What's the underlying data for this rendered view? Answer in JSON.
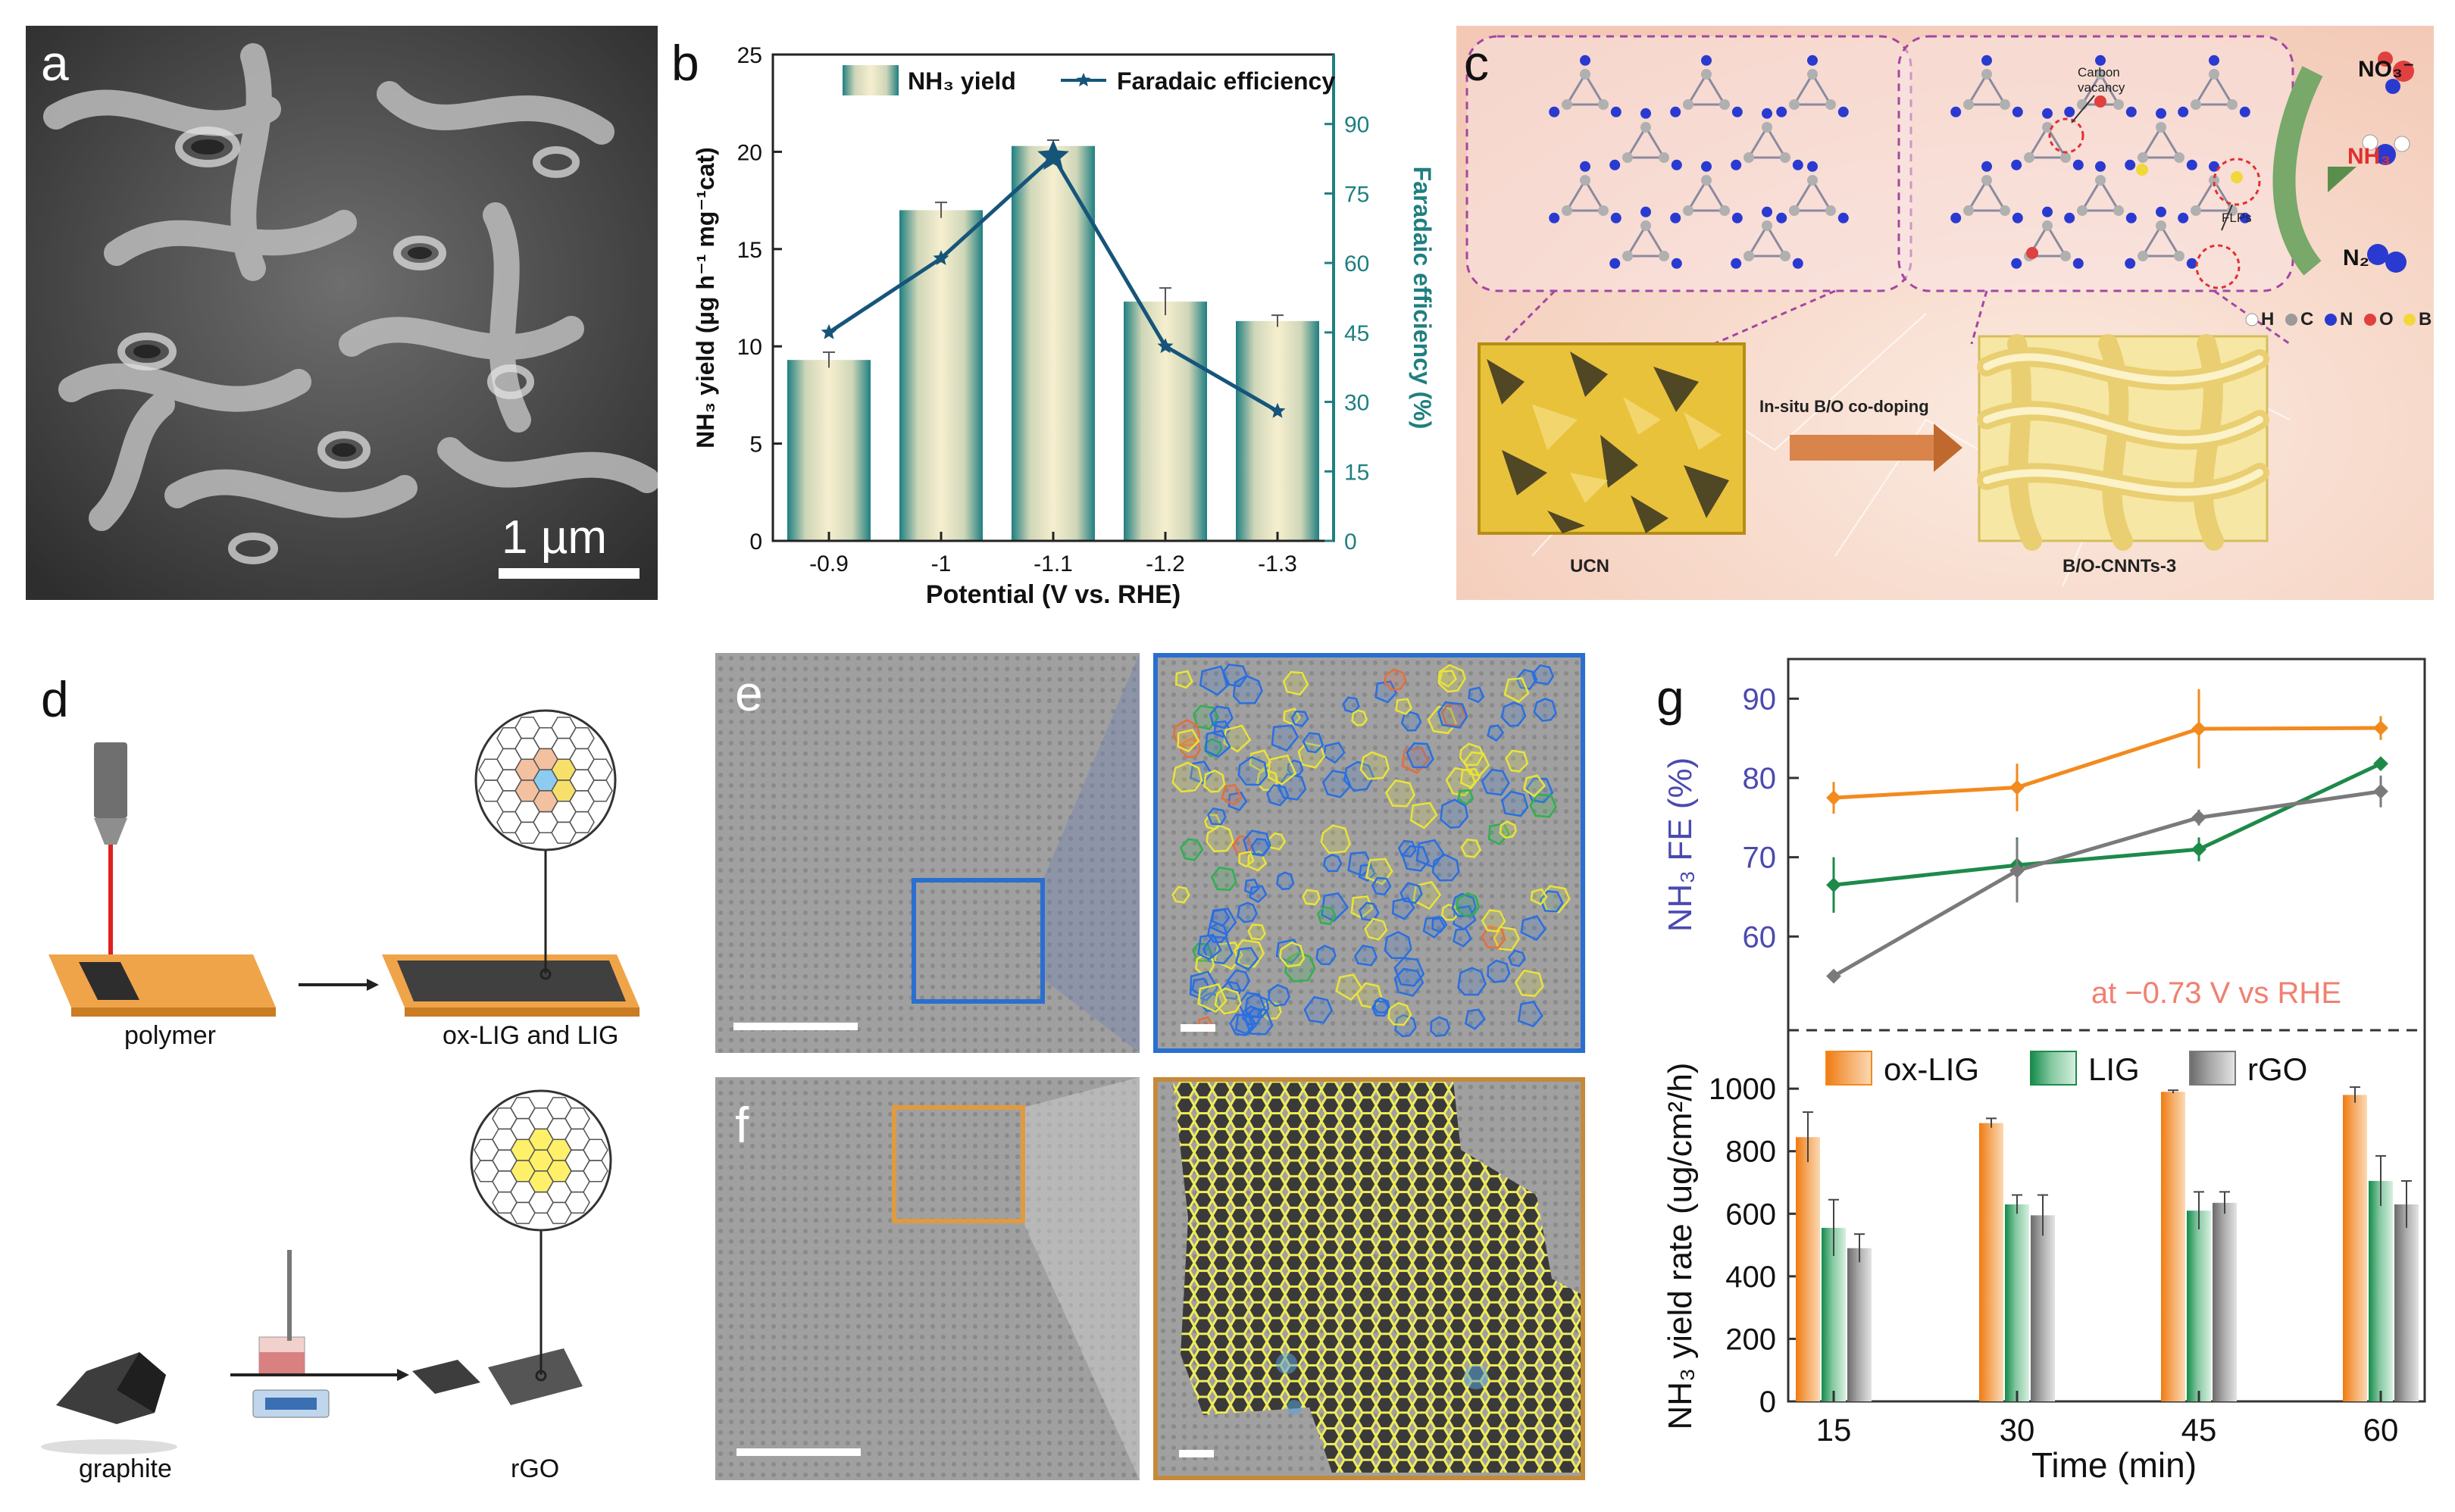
{
  "figure": {
    "panels": {
      "a": {
        "label": "a",
        "scalebar": "1 µm"
      },
      "b": {
        "label": "b"
      },
      "c": {
        "label": "c",
        "carbon_vacancy": "Carbon vacancy",
        "flps": "FLPs",
        "ucn": "UCN",
        "product": "B/O-CNNTs-3",
        "arrow_text": "In-situ B/O co-doping",
        "no3": "NO₃⁻",
        "nh3": "NH₃",
        "n2": "N₂",
        "legend": [
          "H",
          "C",
          "N",
          "O",
          "B"
        ]
      },
      "d": {
        "label": "d",
        "polymer": "polymer",
        "lig": "ox-LIG and LIG",
        "graphite": "graphite",
        "rgo": "rGO"
      },
      "e": {
        "label": "e"
      },
      "f": {
        "label": "f"
      },
      "g": {
        "label": "g"
      }
    },
    "colors": {
      "teal": "#1f7f80",
      "navy": "#16557a",
      "orange": "#f28a1e",
      "green": "#1e8a4a",
      "gray": "#7a7a7a",
      "fe_axis": "#4a4ab0",
      "annot": "#f08070"
    }
  },
  "chart_data": [
    {
      "type": "bar",
      "panel": "b",
      "categories": [
        "-0.9",
        "-1",
        "-1.1",
        "-1.2",
        "-1.3"
      ],
      "series": [
        {
          "name": "NH₃ yield",
          "axis": "left",
          "values": [
            9.3,
            17.0,
            20.3,
            12.3,
            11.3
          ],
          "errors": [
            0.4,
            0.4,
            0.3,
            0.7,
            0.3
          ]
        },
        {
          "name": "Faradaic efficiency",
          "axis": "right",
          "type": "line",
          "values": [
            45,
            61,
            83,
            42,
            28
          ]
        }
      ],
      "legend": [
        "NH₃ yield",
        "Faradaic efficiency"
      ],
      "xlabel": "Potential (V vs. RHE)",
      "ylabel": "NH₃ yield (µg h⁻¹ mg⁻¹cat)",
      "y2label": "Faradaic efficiency (%)",
      "ylim": [
        0,
        25
      ],
      "yticks": [
        "0",
        "5",
        "10",
        "15",
        "20",
        "25"
      ],
      "y2lim": [
        0,
        105
      ],
      "y2ticks": [
        "0",
        "15",
        "30",
        "45",
        "60",
        "75",
        "90"
      ]
    },
    {
      "type": "line",
      "panel": "g-top",
      "x": [
        15,
        30,
        45,
        60
      ],
      "series": [
        {
          "name": "ox-LIG",
          "values": [
            77.5,
            78.8,
            86.2,
            86.3
          ],
          "errors": [
            2,
            3,
            5,
            1.5
          ]
        },
        {
          "name": "LIG",
          "values": [
            66.5,
            69.0,
            71.0,
            81.8
          ],
          "errors": [
            3.5,
            3.5,
            1.5,
            0.5
          ]
        },
        {
          "name": "rGO",
          "values": [
            55.0,
            68.3,
            75.0,
            78.3
          ],
          "errors": [
            0.5,
            4,
            1,
            2
          ]
        }
      ],
      "ylabel": "NH₃ FE (%)",
      "ylim": [
        52,
        95
      ],
      "yticks": [
        "60",
        "70",
        "80",
        "90"
      ],
      "annotation": "at  −0.73 V vs RHE"
    },
    {
      "type": "bar",
      "panel": "g-bottom",
      "categories": [
        "15",
        "30",
        "45",
        "60"
      ],
      "series": [
        {
          "name": "ox-LIG",
          "values": [
            845,
            890,
            990,
            980
          ],
          "errors": [
            80,
            15,
            5,
            25
          ]
        },
        {
          "name": "LIG",
          "values": [
            555,
            630,
            610,
            705
          ],
          "errors": [
            90,
            30,
            60,
            80
          ]
        },
        {
          "name": "rGO",
          "values": [
            490,
            595,
            635,
            630
          ],
          "errors": [
            45,
            65,
            35,
            75
          ]
        }
      ],
      "legend": [
        "ox-LIG",
        "LIG",
        "rGO"
      ],
      "xlabel": "Time (min)",
      "ylabel": "NH₃ yield rate (ug/cm²/h)",
      "ylim": [
        0,
        1090
      ],
      "yticks": [
        "0",
        "200",
        "400",
        "600",
        "800",
        "1000"
      ]
    }
  ]
}
